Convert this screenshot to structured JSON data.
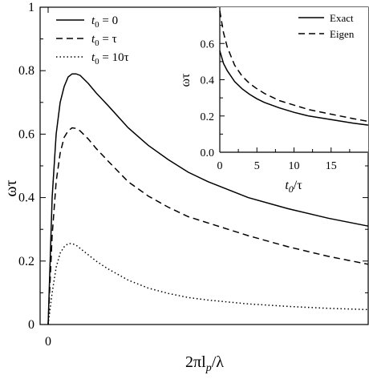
{
  "chart_data": [
    {
      "type": "line",
      "ylabel": "ωτ",
      "xlabel_parts": {
        "pre": "2πl",
        "sub": "p",
        "post": "/λ"
      },
      "ylim": [
        0,
        1
      ],
      "xlim": [
        0,
        8
      ],
      "yticks": [
        "0",
        "0.2",
        "0.4",
        "0.6",
        "0.8",
        "1"
      ],
      "xticks": [
        "0"
      ],
      "legend_position": "top-left",
      "series": [
        {
          "legend": {
            "pre": "t",
            "sub": "0",
            "post": " = 0"
          },
          "style": "solid",
          "x": [
            0,
            0.1,
            0.2,
            0.3,
            0.4,
            0.5,
            0.6,
            0.7,
            0.8,
            1.0,
            1.2,
            1.5,
            2.0,
            2.5,
            3.0,
            3.5,
            4.0,
            5.0,
            6.0,
            7.0,
            8.0
          ],
          "y": [
            0,
            0.4,
            0.6,
            0.7,
            0.75,
            0.78,
            0.79,
            0.79,
            0.785,
            0.76,
            0.73,
            0.69,
            0.62,
            0.565,
            0.52,
            0.48,
            0.45,
            0.4,
            0.365,
            0.335,
            0.31
          ]
        },
        {
          "legend": {
            "pre": "t",
            "sub": "0",
            "post": " = τ"
          },
          "style": "dashed",
          "x": [
            0,
            0.1,
            0.2,
            0.3,
            0.4,
            0.5,
            0.6,
            0.7,
            0.8,
            1.0,
            1.2,
            1.5,
            2.0,
            2.5,
            3.0,
            3.5,
            4.0,
            5.0,
            6.0,
            7.0,
            8.0
          ],
          "y": [
            0,
            0.28,
            0.45,
            0.54,
            0.59,
            0.61,
            0.62,
            0.618,
            0.61,
            0.585,
            0.555,
            0.515,
            0.45,
            0.405,
            0.37,
            0.34,
            0.32,
            0.28,
            0.245,
            0.215,
            0.19
          ]
        },
        {
          "legend": {
            "pre": "t",
            "sub": "0",
            "post": " = 10τ"
          },
          "style": "dotted",
          "x": [
            0,
            0.1,
            0.2,
            0.3,
            0.4,
            0.5,
            0.6,
            0.7,
            0.8,
            1.0,
            1.2,
            1.5,
            2.0,
            2.5,
            3.0,
            3.5,
            4.0,
            5.0,
            6.0,
            7.0,
            8.0
          ],
          "y": [
            0,
            0.1,
            0.18,
            0.225,
            0.245,
            0.255,
            0.255,
            0.25,
            0.24,
            0.22,
            0.2,
            0.175,
            0.14,
            0.115,
            0.098,
            0.085,
            0.077,
            0.065,
            0.057,
            0.051,
            0.047
          ]
        }
      ]
    },
    {
      "type": "line",
      "ylabel": "ωτ",
      "xlabel_parts": {
        "pre": "t",
        "sub": "0",
        "post": "/τ"
      },
      "ylim": [
        0,
        0.8
      ],
      "xlim": [
        0,
        20
      ],
      "yticks": [
        "0.0",
        "0.2",
        "0.4",
        "0.6"
      ],
      "xticks": [
        "0",
        "5",
        "10",
        "15"
      ],
      "legend_position": "top-right",
      "series": [
        {
          "name": "Exact",
          "style": "solid",
          "x": [
            0,
            0.5,
            1,
            2,
            3,
            4,
            5,
            6,
            8,
            10,
            12,
            15,
            18,
            20
          ],
          "y": [
            0.56,
            0.49,
            0.45,
            0.39,
            0.35,
            0.32,
            0.295,
            0.275,
            0.245,
            0.22,
            0.2,
            0.18,
            0.16,
            0.15
          ]
        },
        {
          "name": "Eigen",
          "style": "dashed",
          "x": [
            0,
            0.25,
            0.5,
            1,
            2,
            3,
            4,
            5,
            6,
            8,
            10,
            12,
            15,
            18,
            20
          ],
          "y": [
            0.78,
            0.72,
            0.66,
            0.58,
            0.48,
            0.42,
            0.38,
            0.35,
            0.325,
            0.285,
            0.26,
            0.235,
            0.21,
            0.185,
            0.17
          ]
        }
      ]
    }
  ]
}
